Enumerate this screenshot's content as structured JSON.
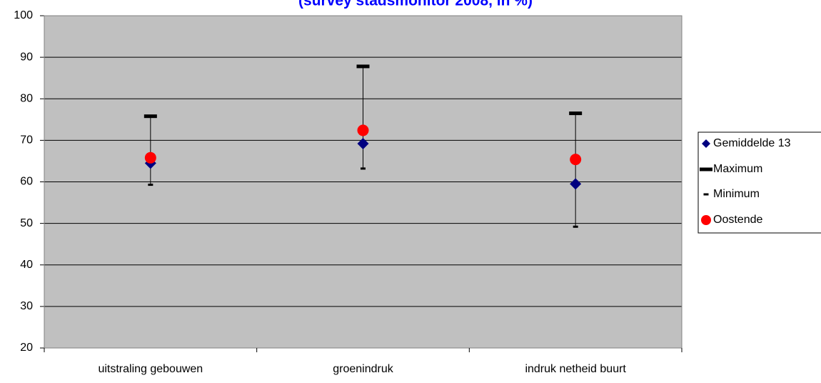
{
  "chart_data": {
    "type": "scatter",
    "title": "(survey stadsmonitor 2008, in %)",
    "categories": [
      "uitstraling gebouwen",
      "groenindruk",
      "indruk netheid buurt"
    ],
    "series": [
      {
        "name": "Gemiddelde 13",
        "color": "#000080",
        "marker": "diamond",
        "values": [
          64.5,
          69.2,
          59.5
        ]
      },
      {
        "name": "Maximum",
        "color": "#000000",
        "marker": "long-dash",
        "values": [
          75.8,
          87.8,
          76.5
        ]
      },
      {
        "name": "Minimum",
        "color": "#000000",
        "marker": "short-dash",
        "values": [
          59.3,
          63.2,
          49.2
        ]
      },
      {
        "name": "Oostende",
        "color": "#ff0000",
        "marker": "circle",
        "values": [
          65.8,
          72.4,
          65.4
        ]
      }
    ],
    "ylim": [
      20,
      100
    ],
    "yticks": [
      20,
      30,
      40,
      50,
      60,
      70,
      80,
      90,
      100
    ],
    "grid": true,
    "legend": "right",
    "plot_background": "#c0c0c0",
    "high_low_lines": true
  }
}
